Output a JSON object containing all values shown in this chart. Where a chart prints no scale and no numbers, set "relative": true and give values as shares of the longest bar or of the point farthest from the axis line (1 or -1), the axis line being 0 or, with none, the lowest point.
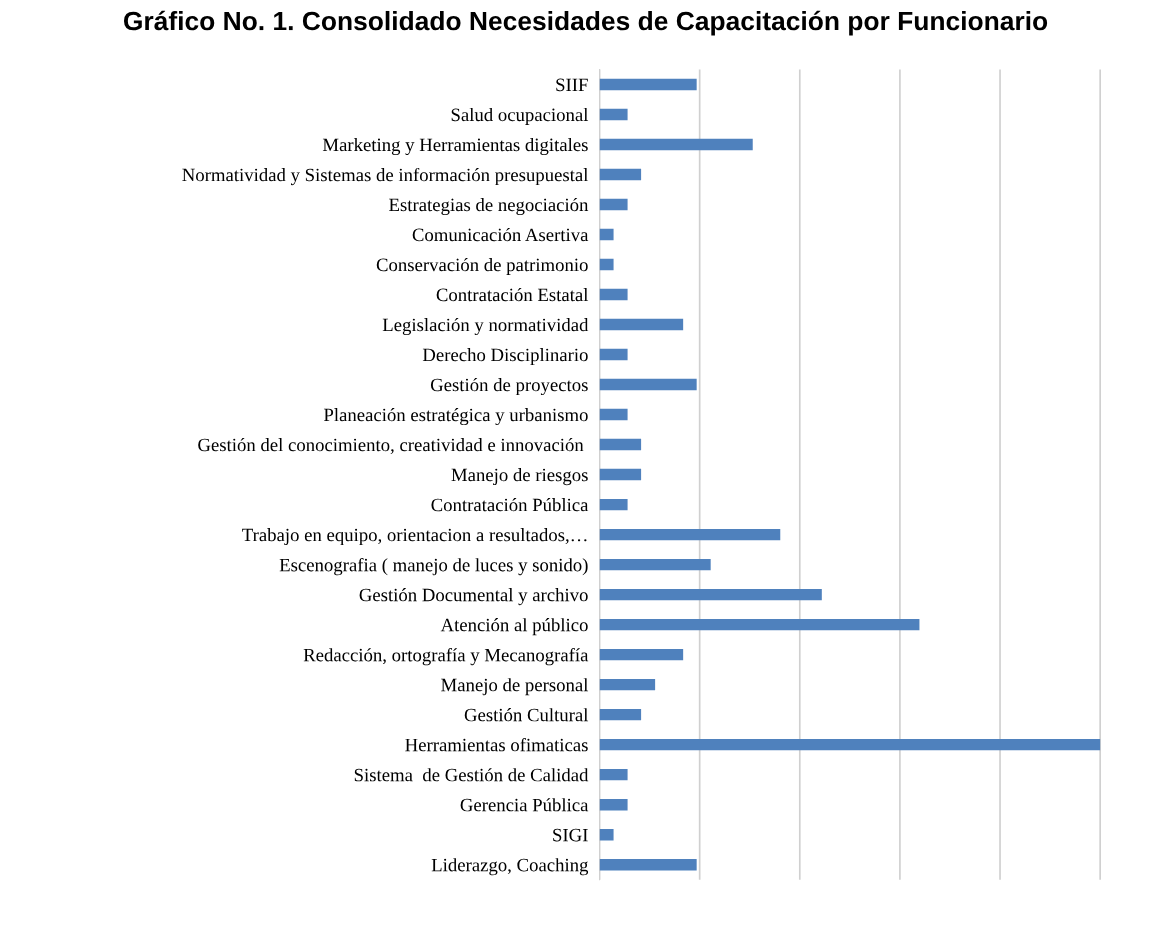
{
  "chart_data": {
    "type": "bar",
    "orientation": "horizontal",
    "relative": true,
    "grid": "x",
    "title": "Gráfico No. 1. Consolidado Necesidades de Capacitación por Funcionario",
    "categories": [
      "SIIF",
      "Salud ocupacional",
      "Marketing y Herramientas digitales",
      "Normatividad y Sistemas de información presupuestal",
      "Estrategias de negociación",
      "Comunicación Asertiva",
      "Conservación de patrimonio",
      "Contratación Estatal",
      "Legislación y normatividad",
      "Derecho Disciplinario",
      "Gestión de proyectos",
      "Planeación estratégica y urbanismo",
      "Gestión del conocimiento, creatividad e innovación ",
      "Manejo de riesgos",
      "Contratación Pública",
      "Trabajo en equipo, orientacion a resultados,…",
      "Escenografia ( manejo de luces y sonido)",
      "Gestión Documental y archivo",
      "Atención al público",
      "Redacción, ortografía y Mecanografía",
      "Manejo de personal",
      "Gestión Cultural",
      "Herramientas ofimaticas",
      "Sistema  de Gestión de Calidad",
      "Gerencia Pública",
      "SIGI",
      "Liderazgo, Coaching"
    ],
    "values": [
      0.194,
      0.056,
      0.306,
      0.083,
      0.056,
      0.028,
      0.028,
      0.056,
      0.167,
      0.056,
      0.194,
      0.056,
      0.083,
      0.083,
      0.056,
      0.361,
      0.222,
      0.444,
      0.639,
      0.167,
      0.111,
      0.083,
      1.0,
      0.056,
      0.056,
      0.028,
      0.194
    ],
    "color": "#4f81bd"
  }
}
